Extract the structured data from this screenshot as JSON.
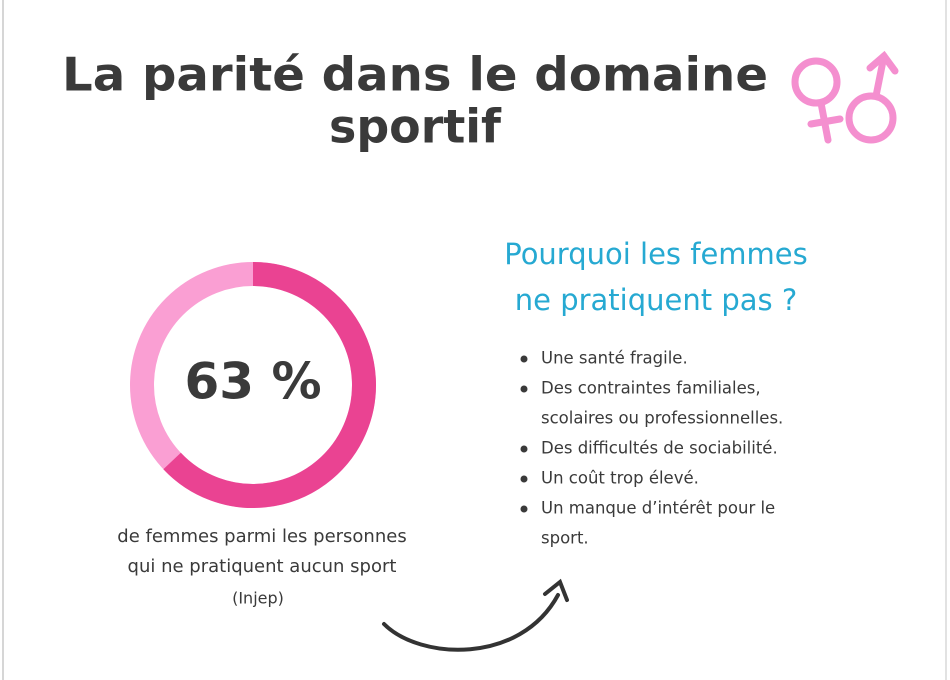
{
  "title": [
    "La parité dans le domaine",
    "sportif"
  ],
  "stat": {
    "value": 63,
    "value_label": "63 %",
    "color": "#ea4392",
    "track_color": "#fa9fd3",
    "caption": [
      "de femmes parmi les personnes",
      "qui ne pratiquent aucun sport"
    ],
    "source": "(Injep)"
  },
  "reasons": {
    "title": [
      "Pourquoi les femmes",
      "ne pratiquent pas ?"
    ],
    "items": [
      [
        "Une santé fragile."
      ],
      [
        "Des contraintes familiales,",
        "scolaires ou professionnelles."
      ],
      [
        "Des difficultés de sociabilité."
      ],
      [
        "Un coût trop élevé."
      ],
      [
        "Un manque d’intérêt pour le",
        "sport."
      ]
    ]
  }
}
